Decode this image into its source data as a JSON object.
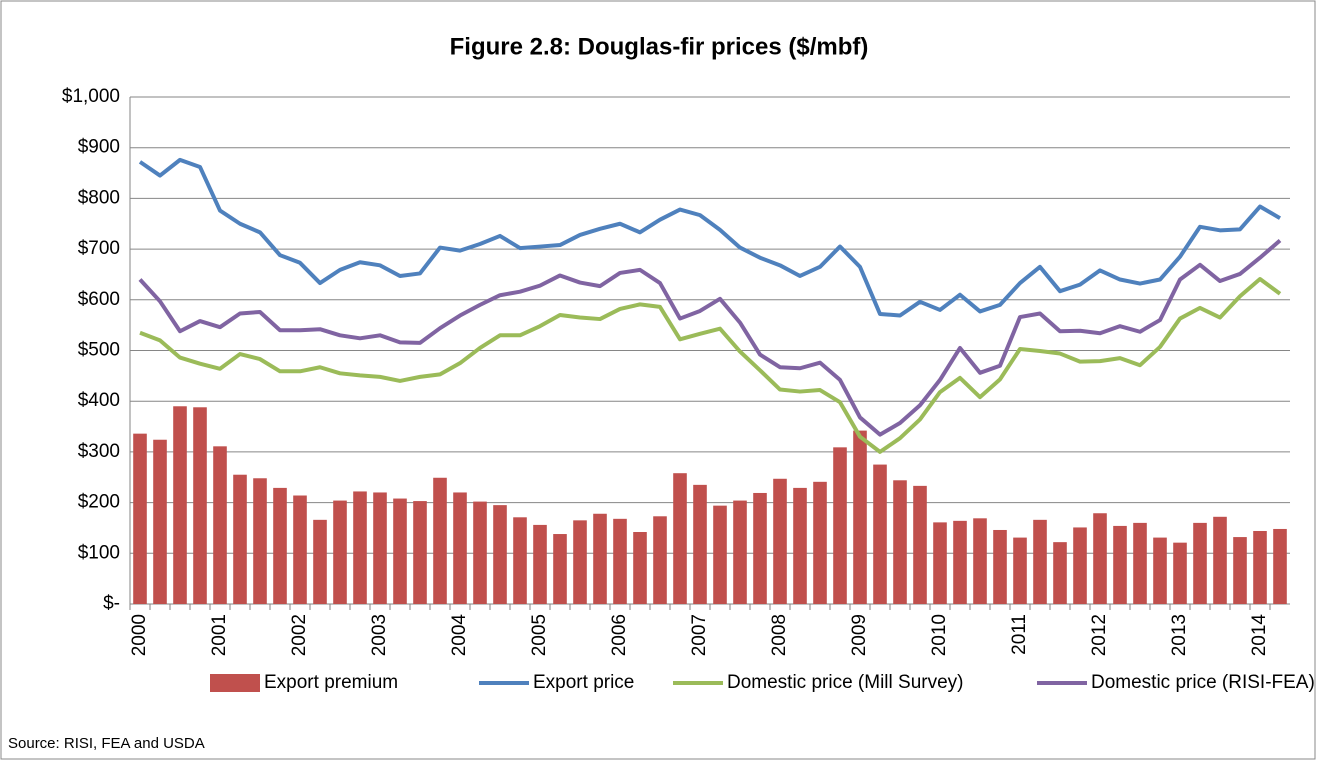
{
  "chart_data": {
    "type": "bar_line",
    "title": "Figure 2.8: Douglas-fir prices ($/mbf)",
    "source": "Source:  RISI, FEA and USDA",
    "categories": [
      "2000",
      null,
      null,
      null,
      "2001",
      null,
      null,
      null,
      "2002",
      null,
      null,
      null,
      "2003",
      null,
      null,
      null,
      "2004",
      null,
      null,
      null,
      "2005",
      null,
      null,
      null,
      "2006",
      null,
      null,
      null,
      "2007",
      null,
      null,
      null,
      "2008",
      null,
      null,
      null,
      "2009",
      null,
      null,
      null,
      "2010",
      null,
      null,
      null,
      "2011",
      null,
      null,
      null,
      "2012",
      null,
      null,
      null,
      "2013",
      null,
      null,
      null,
      "2014",
      null
    ],
    "series": [
      {
        "name": "Export premium",
        "type": "bar",
        "color": "#c0504d",
        "values": [
          336,
          324,
          390,
          388,
          311,
          255,
          248,
          229,
          214,
          166,
          204,
          222,
          220,
          208,
          203,
          249,
          220,
          202,
          195,
          171,
          156,
          138,
          165,
          178,
          168,
          142,
          173,
          258,
          235,
          194,
          204,
          219,
          247,
          229,
          241,
          309,
          342,
          275,
          244,
          233,
          161,
          164,
          169,
          146,
          131,
          166,
          122,
          151,
          179,
          154,
          160,
          131,
          121,
          160,
          172,
          132,
          144,
          148
        ]
      },
      {
        "name": "Export price",
        "type": "line",
        "color": "#4f81bd",
        "values": [
          872,
          845,
          876,
          862,
          776,
          750,
          733,
          688,
          673,
          633,
          659,
          674,
          668,
          647,
          652,
          703,
          697,
          710,
          726,
          702,
          705,
          708,
          728,
          740,
          750,
          733,
          758,
          778,
          767,
          738,
          703,
          683,
          668,
          647,
          665,
          705,
          665,
          572,
          569,
          596,
          580,
          610,
          577,
          590,
          633,
          665,
          617,
          630,
          658,
          640,
          632,
          640,
          685,
          744,
          737,
          739,
          784,
          761
        ]
      },
      {
        "name": "Domestic price (Mill Survey)",
        "type": "line",
        "color": "#9bbb59",
        "values": [
          535,
          520,
          486,
          474,
          464,
          493,
          483,
          459,
          459,
          467,
          455,
          451,
          448,
          440,
          448,
          453,
          475,
          505,
          530,
          530,
          548,
          570,
          565,
          562,
          582,
          591,
          586,
          522,
          533,
          543,
          498,
          461,
          423,
          419,
          422,
          398,
          330,
          300,
          327,
          364,
          418,
          446,
          408,
          443,
          503,
          499,
          494,
          478,
          479,
          485,
          471,
          507,
          563,
          584,
          565,
          607,
          641,
          612
        ]
      },
      {
        "name": "Domestic price (RISI-FEA)",
        "type": "line",
        "color": "#8064a2",
        "values": [
          640,
          597,
          538,
          558,
          546,
          573,
          576,
          540,
          540,
          542,
          530,
          524,
          530,
          516,
          515,
          544,
          569,
          590,
          609,
          616,
          628,
          648,
          634,
          627,
          653,
          659,
          633,
          563,
          578,
          602,
          555,
          492,
          467,
          465,
          476,
          442,
          368,
          334,
          357,
          392,
          442,
          505,
          456,
          470,
          566,
          573,
          538,
          539,
          534,
          548,
          537,
          560,
          640,
          669,
          637,
          651,
          683,
          717
        ]
      }
    ],
    "ylim": [
      0,
      1000
    ],
    "yticks": [
      {
        "value": 0,
        "label": "$-"
      },
      {
        "value": 100,
        "label": "$100"
      },
      {
        "value": 200,
        "label": "$200"
      },
      {
        "value": 300,
        "label": "$300"
      },
      {
        "value": 400,
        "label": "$400"
      },
      {
        "value": 500,
        "label": "$500"
      },
      {
        "value": 600,
        "label": "$600"
      },
      {
        "value": 700,
        "label": "$700"
      },
      {
        "value": 800,
        "label": "$800"
      },
      {
        "value": 900,
        "label": "$900"
      },
      {
        "value": 1000,
        "label": "$1,000"
      }
    ],
    "grid": true,
    "legend": "bottom"
  }
}
